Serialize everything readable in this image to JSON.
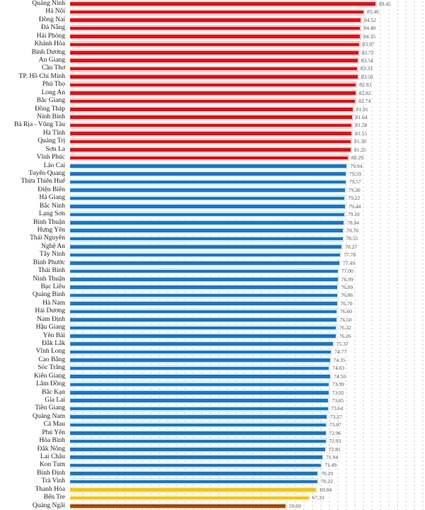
{
  "chart_data": {
    "type": "bar",
    "orientation": "horizontal",
    "title": "",
    "xlabel": "",
    "ylabel": "",
    "xlim": [
      -11.5,
      105
    ],
    "grid": true,
    "legend": "none",
    "group_colors": {
      "red": "#d4141c",
      "blue": "#1f75bd",
      "yellow": "#f1c41c",
      "brown": "#9c4a12"
    },
    "categories": [
      "Quảng Ninh",
      "Hà Nội",
      "Đồng Nai",
      "Đà Nẵng",
      "Hải Phòng",
      "Khánh Hòa",
      "Bình Dương",
      "An Giang",
      "Cần Thơ",
      "TP. Hồ Chí Minh",
      "Phú Thọ",
      "Long An",
      "Bắc Giang",
      "Đồng Tháp",
      "Ninh Bình",
      "Bà Rịa - Vũng Tàu",
      "Hà Tĩnh",
      "Quảng Trị",
      "Sơn La",
      "Vĩnh Phúc",
      "Lào Cai",
      "Tuyên Quang",
      "Thừa Thiên Huế",
      "Điện Biên",
      "Hà Giang",
      "Bắc Ninh",
      "Lạng Sơn",
      "Bình Thuận",
      "Hưng Yên",
      "Thái Nguyên",
      "Nghệ An",
      "Tây Ninh",
      "Bình Phước",
      "Thái Bình",
      "Ninh Thuận",
      "Bạc Liêu",
      "Quảng Bình",
      "Hà Nam",
      "Hải Dương",
      "Nam Định",
      "Hậu Giang",
      "Yên Bái",
      "Đắk Lắk",
      "Vĩnh Long",
      "Cao Bằng",
      "Sóc Trăng",
      "Kiên Giang",
      "Lâm Đồng",
      "Bắc Kạn",
      "Gia Lai",
      "Tiền Giang",
      "Quảng Nam",
      "Cà Mau",
      "Phú Yên",
      "Hòa Bình",
      "Đắk Nông",
      "Lai Châu",
      "Kon Tum",
      "Bình Định",
      "Trà Vinh",
      "Thanh Hóa",
      "Bến Tre",
      "Quảng Ngãi"
    ],
    "values": [
      89.45,
      85.46,
      84.52,
      84.4,
      84.35,
      83.97,
      83.73,
      83.54,
      83.33,
      83.5,
      82.93,
      82.82,
      82.74,
      81.91,
      81.64,
      81.58,
      81.55,
      81.3,
      81.25,
      80.29,
      79.94,
      79.59,
      79.57,
      79.3,
      79.22,
      79.44,
      79.1,
      78.94,
      78.76,
      78.55,
      78.27,
      77.78,
      77.49,
      77.0,
      76.99,
      76.89,
      76.86,
      76.7,
      76.6,
      76.5,
      76.32,
      76.26,
      75.37,
      74.77,
      74.35,
      74.03,
      74.5,
      73.99,
      73.92,
      73.85,
      73.64,
      73.27,
      73.07,
      72.96,
      72.93,
      72.81,
      71.94,
      71.49,
      70.29,
      70.22,
      69.84,
      67.33,
      59.69
    ],
    "value_labels": [
      "89.45",
      "85.46",
      "84.52",
      "84.40",
      "84.35",
      "83.97",
      "83.73",
      "83.54",
      "83.33",
      "83.50",
      "82.93",
      "82.82",
      "82.74",
      "81.91",
      "81.64",
      "81.58",
      "81.55",
      "81.30",
      "81.25",
      "80.29",
      "79.94",
      "79.59",
      "79.57",
      "79.30",
      "79.22",
      "79.44",
      "79.10",
      "78.94",
      "78.76",
      "78.55",
      "78.27",
      "77.78",
      "77.49",
      "77.00",
      "76.99",
      "76.89",
      "76.86",
      "76.70",
      "76.60",
      "76.50",
      "76.32",
      "76.26",
      "75.37",
      "74.77",
      "74.35",
      "74.03",
      "74.50",
      "73.99",
      "73.92",
      "73.85",
      "73.64",
      "73.27",
      "73.07",
      "72.96",
      "72.93",
      "72.81",
      "71.94",
      "71.49",
      "70.29",
      "70.22",
      "69.84",
      "67.33",
      "59.69"
    ],
    "groups": [
      "red",
      "red",
      "red",
      "red",
      "red",
      "red",
      "red",
      "red",
      "red",
      "red",
      "red",
      "red",
      "red",
      "red",
      "red",
      "red",
      "red",
      "red",
      "red",
      "red",
      "blue",
      "blue",
      "blue",
      "blue",
      "blue",
      "blue",
      "blue",
      "blue",
      "blue",
      "blue",
      "blue",
      "blue",
      "blue",
      "blue",
      "blue",
      "blue",
      "blue",
      "blue",
      "blue",
      "blue",
      "blue",
      "blue",
      "blue",
      "blue",
      "blue",
      "blue",
      "blue",
      "blue",
      "blue",
      "blue",
      "blue",
      "blue",
      "blue",
      "blue",
      "blue",
      "blue",
      "blue",
      "blue",
      "blue",
      "blue",
      "yellow",
      "yellow",
      "brown"
    ]
  }
}
